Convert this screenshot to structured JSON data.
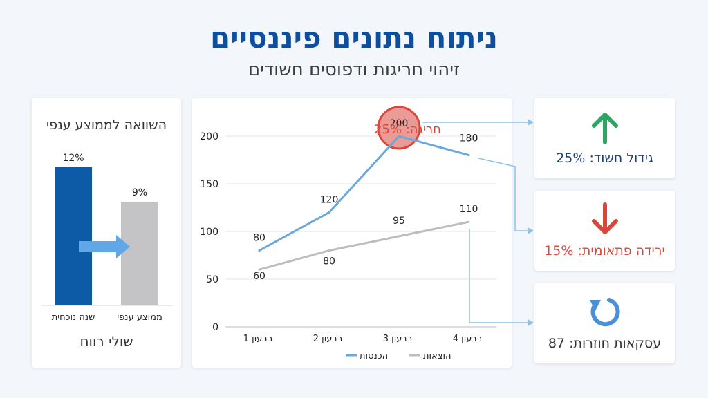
{
  "header": {
    "title": "ניתוח נתונים פיננסיים",
    "subtitle": "זיהוי חריגות ודפוסים חשודים"
  },
  "colors": {
    "title": "#0d4f9e",
    "revenue": "#6aa8dc",
    "expenses": "#bdbdbd",
    "alert": "#d9473a",
    "positive": "#2ea663",
    "neutral_icon": "#4a8fd8",
    "bar_current": "#0d5aa7",
    "bar_industry": "#c4c4c6"
  },
  "comparison": {
    "title": "השוואה לממוצע ענפי",
    "footer": "שולי רווח",
    "bars": [
      {
        "label": "שנה נוכחית",
        "value": 12,
        "value_label": "12%"
      },
      {
        "label": "ממוצע ענפי",
        "value": 9,
        "value_label": "9%"
      }
    ]
  },
  "chart_data": {
    "type": "line",
    "categories": [
      "רבעון 1",
      "רבעון 2",
      "רבעון 3",
      "רבעון 4"
    ],
    "series": [
      {
        "name": "הכנסות",
        "values": [
          80,
          120,
          200,
          180
        ]
      },
      {
        "name": "הוצאות",
        "values": [
          60,
          80,
          95,
          110
        ]
      }
    ],
    "ylim": [
      0,
      200
    ],
    "yticks": [
      0,
      50,
      100,
      150,
      200
    ],
    "grid": true,
    "legend": "bottom",
    "annotation": {
      "text": "חריגה: 25%",
      "category_index": 2,
      "series_index": 0
    }
  },
  "insights": {
    "growth": {
      "icon": "arrow-up-icon",
      "label": "גידול חשוד: 25%"
    },
    "drop": {
      "icon": "arrow-down-icon",
      "label": "ירידה פתאומית: 15%"
    },
    "recurring": {
      "icon": "refresh-icon",
      "label": "עסקאות חוזרות: 87"
    }
  }
}
